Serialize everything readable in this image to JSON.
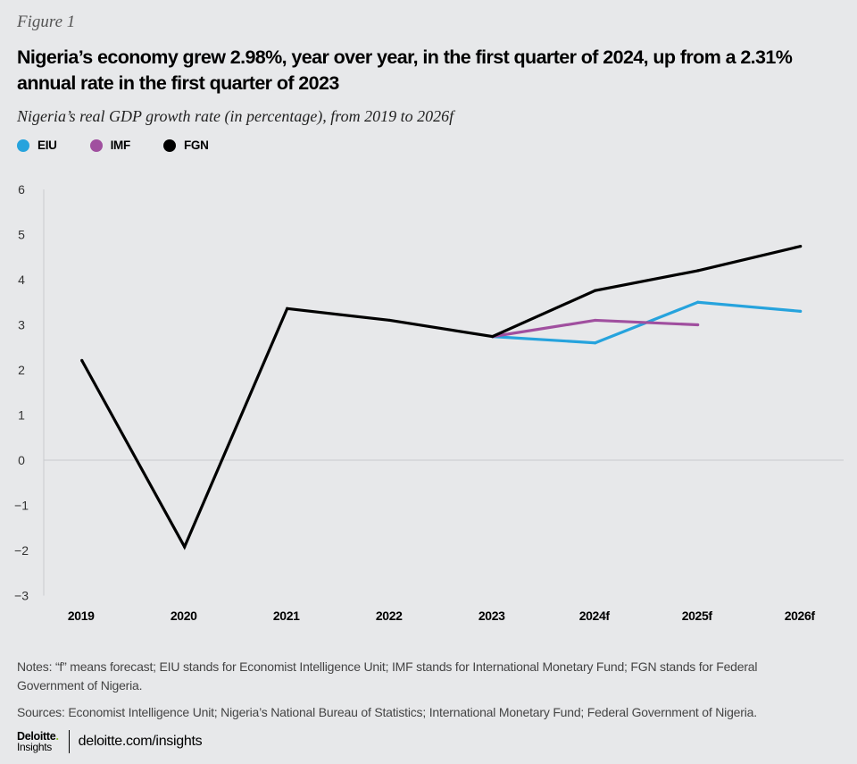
{
  "figure_label": "Figure 1",
  "title": "Nigeria’s economy grew 2.98%, year over year, in the first quarter of 2024, up from a 2.31% annual rate in the first quarter of 2023",
  "subtitle": "Nigeria’s real GDP growth rate (in percentage), from 2019 to 2026f",
  "legend": [
    {
      "name": "EIU",
      "color": "#26a3dd"
    },
    {
      "name": "IMF",
      "color": "#a04f9f"
    },
    {
      "name": "FGN",
      "color": "#000000"
    }
  ],
  "chart_data": {
    "type": "line",
    "title": "Nigeria’s real GDP growth rate (in percentage), from 2019 to 2026f",
    "xlabel": "",
    "ylabel": "",
    "categories": [
      "2019",
      "2020",
      "2021",
      "2022",
      "2023",
      "2024f",
      "2025f",
      "2026f"
    ],
    "yticks": [
      "6",
      "5",
      "4",
      "3",
      "2",
      "1",
      "0",
      "−1",
      "−2",
      "−3"
    ],
    "ylim": [
      -3,
      6
    ],
    "grid": "zero-line only",
    "legend_position": "top-left",
    "series": [
      {
        "name": "FGN",
        "color": "#000000",
        "values": [
          2.21,
          -1.92,
          3.36,
          3.1,
          2.74,
          3.76,
          4.2,
          4.74
        ]
      },
      {
        "name": "IMF",
        "color": "#a04f9f",
        "values": [
          null,
          null,
          null,
          null,
          2.74,
          3.1,
          3.0,
          null
        ]
      },
      {
        "name": "EIU",
        "color": "#26a3dd",
        "values": [
          null,
          null,
          null,
          null,
          2.74,
          2.6,
          3.5,
          3.3
        ]
      }
    ]
  },
  "notes": "Notes: “f” means forecast; EIU stands for Economist Intelligence Unit; IMF stands for International Monetary Fund; FGN stands for Federal Government of Nigeria.",
  "sources": "Sources: Economist Intelligence Unit; Nigeria’s National Bureau of Statistics; International Monetary Fund; Federal Government of Nigeria.",
  "footer": {
    "logo_main": "Deloitte",
    "logo_dot": ".",
    "logo_sub": "Insights",
    "link": "deloitte.com/insights"
  }
}
